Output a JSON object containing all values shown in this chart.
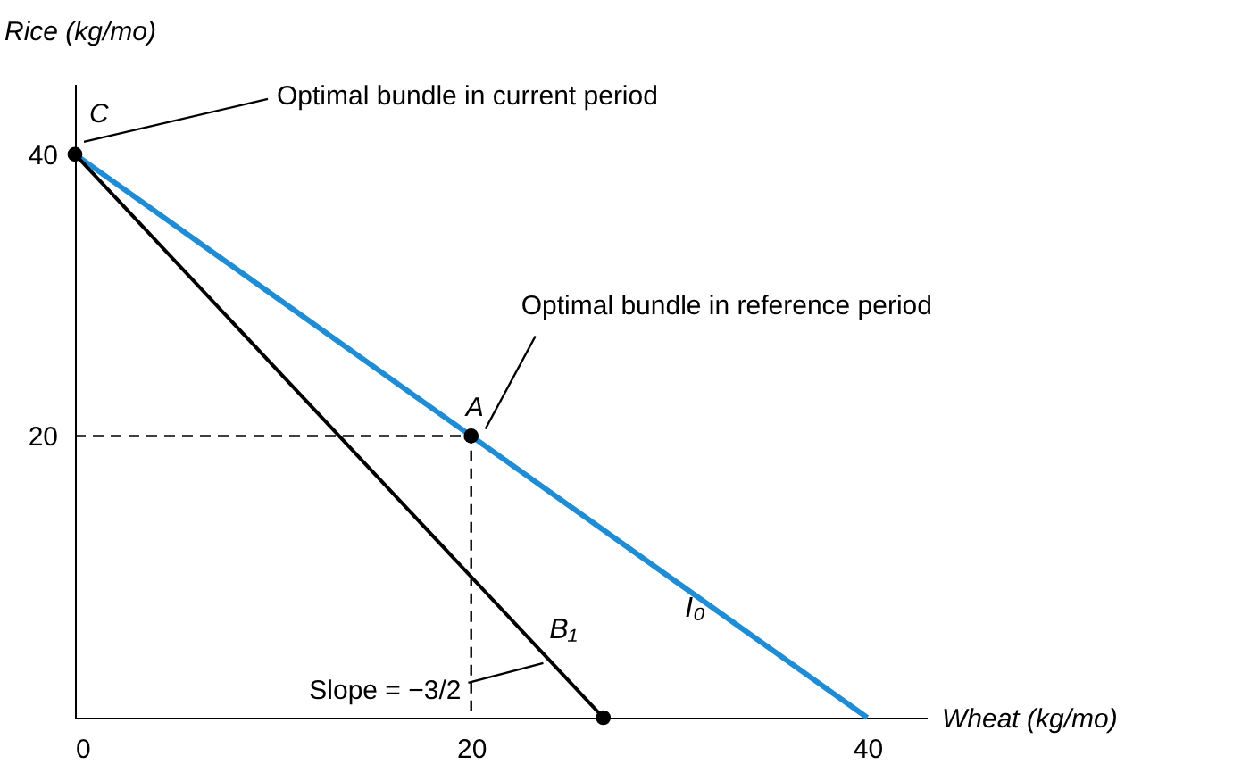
{
  "chart_data": {
    "type": "line",
    "xlabel": "Wheat (kg/mo)",
    "ylabel": "Rice (kg/mo)",
    "xlim": [
      0,
      43
    ],
    "ylim": [
      0,
      45
    ],
    "xticks": [
      0,
      20,
      40
    ],
    "yticks": [
      20,
      40
    ],
    "legend": false,
    "series": [
      {
        "name": "I₀",
        "color": "#1f8dd6",
        "x": [
          0,
          40
        ],
        "values": [
          40,
          0
        ]
      },
      {
        "name": "B₁",
        "color": "#000000",
        "x": [
          0,
          26.67
        ],
        "values": [
          40,
          0
        ]
      },
      {
        "type": "line",
        "color": "#000000",
        "line_style": "dashed",
        "x": [
          0,
          20,
          20
        ],
        "values": [
          20,
          20,
          0
        ]
      },
      {
        "type": "scatter",
        "color": "#000000",
        "marker": "circle",
        "x": [
          0,
          20,
          26.67
        ],
        "values": [
          40,
          20,
          0
        ]
      }
    ],
    "annotations": [
      {
        "text": "C",
        "x": 0,
        "y": 40
      },
      {
        "text": "A",
        "x": 20,
        "y": 20
      },
      {
        "text": "Optimal bundle in current period",
        "x": 0,
        "y": 40
      },
      {
        "text": "Optimal bundle in reference period",
        "x": 20,
        "y": 20
      },
      {
        "text": "Slope = −3/2",
        "x": 24,
        "y": 4
      }
    ]
  }
}
